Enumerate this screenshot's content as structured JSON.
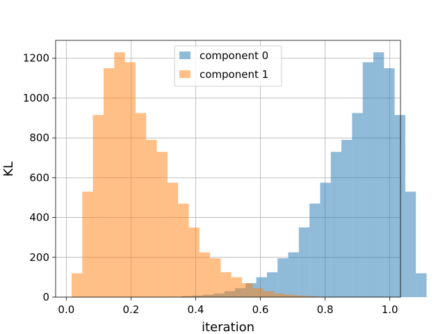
{
  "chart_data": {
    "type": "bar",
    "xlabel": "iteration",
    "ylabel": "KL",
    "xlim": [
      -0.033,
      1.033
    ],
    "ylim": [
      0,
      1290
    ],
    "x_ticks": [
      0.0,
      0.2,
      0.4,
      0.6,
      0.8,
      1.0
    ],
    "x_tick_labels": [
      "0.0",
      "0.2",
      "0.4",
      "0.6",
      "0.8",
      "1.0"
    ],
    "y_ticks": [
      0,
      200,
      400,
      600,
      800,
      1000,
      1200
    ],
    "y_tick_labels": [
      "0",
      "200",
      "400",
      "600",
      "800",
      "1000",
      "1200"
    ],
    "grid": true,
    "legend_position": "top-center",
    "colors": {
      "component 0": "#1f77b4",
      "component 1": "#ff7f0e"
    },
    "series": [
      {
        "name": "component 0",
        "bin_start": 0.324,
        "bin_width": 0.0329,
        "alpha": 0.5,
        "values": [
          2,
          5,
          8,
          12,
          18,
          30,
          45,
          70,
          100,
          125,
          195,
          225,
          350,
          470,
          575,
          730,
          790,
          925,
          1180,
          1230,
          1150,
          915,
          530,
          120
        ]
      },
      {
        "name": "component 1",
        "bin_start": 0.0165,
        "bin_width": 0.0329,
        "alpha": 0.5,
        "values": [
          120,
          530,
          915,
          1150,
          1230,
          1180,
          925,
          790,
          730,
          575,
          470,
          350,
          225,
          195,
          125,
          100,
          70,
          45,
          30,
          18,
          12,
          8,
          5,
          2
        ]
      }
    ]
  }
}
